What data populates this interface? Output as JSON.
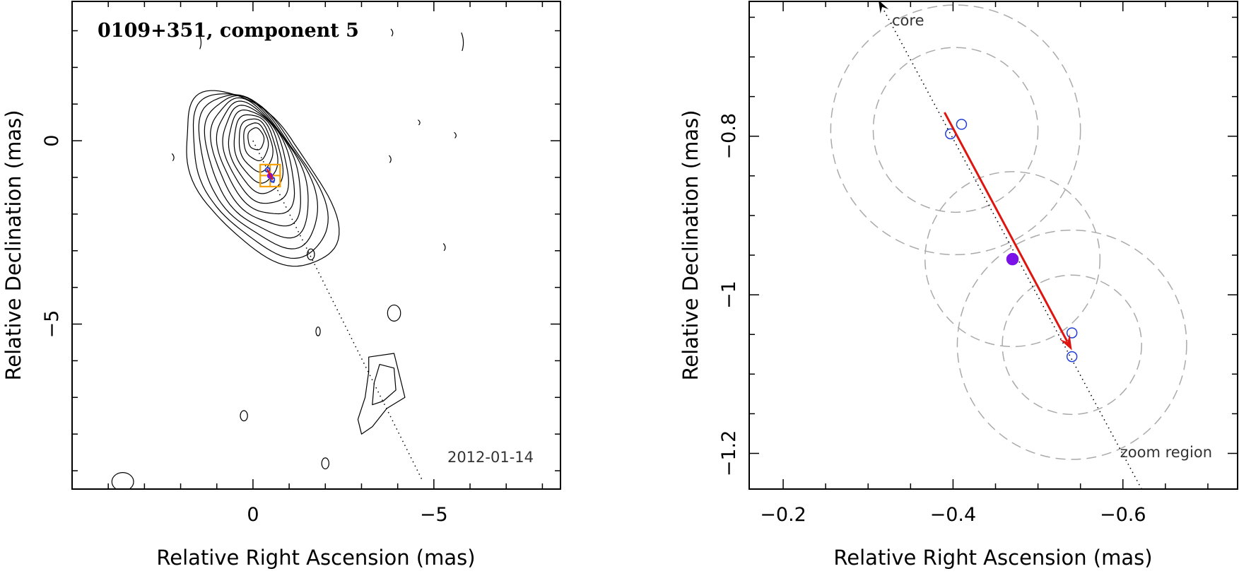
{
  "chart_data": [
    {
      "type": "scatter",
      "title": "0109+351, component 5",
      "annotation": "2012-01-14",
      "xlabel": "Relative Right Ascension (mas)",
      "ylabel": "Relative Declination (mas)",
      "xlim": [
        5,
        -8.5
      ],
      "ylim": [
        -9.5,
        3.8
      ],
      "x_ticks": [
        {
          "value": 0,
          "label": "0"
        },
        {
          "value": -5,
          "label": "−5"
        }
      ],
      "y_ticks": [
        {
          "value": 0,
          "label": "0"
        },
        {
          "value": -5,
          "label": "−5"
        }
      ],
      "x_minor_step": 1,
      "y_minor_step": 1,
      "contours": {
        "main_source": {
          "center": [
            0,
            0
          ],
          "peak_center": [
            -0.08,
            0.05
          ],
          "levels": 12
        },
        "lower_component": {
          "center": [
            -3.5,
            -6.9
          ],
          "levels": 2
        }
      },
      "jet_direction_line": {
        "from": [
          0,
          0
        ],
        "to": [
          -4.7,
          -9.3
        ],
        "style": "dotted"
      },
      "zoom_region": {
        "x": [
          -0.2,
          -0.75
        ],
        "y": [
          -0.65,
          -1.25
        ],
        "color": "#f5a000"
      },
      "series": [
        {
          "marker": "open-circle",
          "color": "#1f3fd6",
          "x": [
            -0.397,
            -0.41,
            -0.54,
            -0.54
          ],
          "y": [
            -0.797,
            -0.785,
            -1.048,
            -1.078
          ]
        },
        {
          "marker": "filled-circle",
          "color": "#7a12e8",
          "x": [
            -0.47
          ],
          "y": [
            -0.955
          ]
        }
      ],
      "motion_vector": {
        "from": [
          -0.39,
          -0.77
        ],
        "to": [
          -0.54,
          -1.07
        ],
        "color": "#e0140f"
      }
    },
    {
      "type": "scatter",
      "xlabel": "Relative Right Ascension (mas)",
      "ylabel": "Relative Declination (mas)",
      "xlim": [
        -0.16,
        -0.735
      ],
      "ylim": [
        -1.245,
        -0.63
      ],
      "x_ticks": [
        {
          "value": -0.2,
          "label": "−0.2"
        },
        {
          "value": -0.4,
          "label": "−0.4"
        },
        {
          "value": -0.6,
          "label": "−0.6"
        }
      ],
      "y_ticks": [
        {
          "value": -0.8,
          "label": "−0.8"
        },
        {
          "value": -1.0,
          "label": "−1"
        },
        {
          "value": -1.2,
          "label": "−1.2"
        }
      ],
      "x_minor_step": 0.05,
      "y_minor_step": 0.05,
      "annotations": [
        "core",
        "zoom region"
      ],
      "jet_direction_line": {
        "from": [
          -0.622,
          -1.245
        ],
        "to": [
          -0.313,
          -0.63
        ],
        "style": "dotted",
        "arrow_label": "core"
      },
      "series": [
        {
          "marker": "open-circle",
          "color": "#1f3fd6",
          "x": [
            -0.397,
            -0.41,
            -0.54,
            -0.54
          ],
          "y": [
            -0.797,
            -0.785,
            -1.048,
            -1.078
          ]
        },
        {
          "marker": "filled-circle",
          "color": "#7a12e8",
          "x": [
            -0.47
          ],
          "y": [
            -0.955
          ]
        }
      ],
      "uncertainty_circles": {
        "color": "#aaaaaa",
        "style": "dashed",
        "items": [
          {
            "cx": -0.403,
            "cy": -0.792,
            "r": 0.097
          },
          {
            "cx": -0.403,
            "cy": -0.792,
            "r": 0.147
          },
          {
            "cx": -0.47,
            "cy": -0.955,
            "r": 0.103
          },
          {
            "cx": -0.54,
            "cy": -1.063,
            "r": 0.135
          },
          {
            "cx": -0.54,
            "cy": -1.063,
            "r": 0.082
          }
        ]
      },
      "motion_vector": {
        "from": [
          -0.39,
          -0.77
        ],
        "to": [
          -0.54,
          -1.07
        ],
        "color": "#e0140f"
      }
    }
  ]
}
